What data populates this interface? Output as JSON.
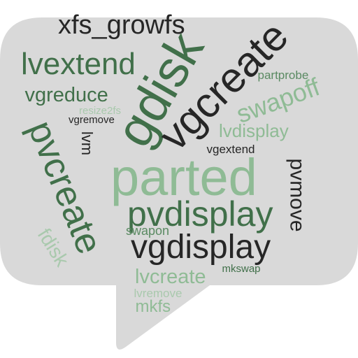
{
  "colors": {
    "bubble": "#d9d9d9",
    "dark": "#262626",
    "green_dark": "#41704a",
    "green_mid": "#5a8a62",
    "green_light": "#8fbb95",
    "green_pale": "#a9c9ad"
  },
  "words": [
    {
      "id": "xfs-growfs",
      "text": "xfs_growfs",
      "color": "#262626"
    },
    {
      "id": "gdisk",
      "text": "gdisk",
      "color": "#41704a"
    },
    {
      "id": "lvextend",
      "text": "lvextend",
      "color": "#41704a"
    },
    {
      "id": "vgcreate",
      "text": "vgcreate",
      "color": "#262626"
    },
    {
      "id": "partprobe",
      "text": "partprobe",
      "color": "#5a8a62"
    },
    {
      "id": "vgreduce",
      "text": "vgreduce",
      "color": "#41704a"
    },
    {
      "id": "swapoff",
      "text": "swapoff",
      "color": "#8fbb95"
    },
    {
      "id": "resize2fs",
      "text": "resize2fs",
      "color": "#a9c9ad"
    },
    {
      "id": "pvcreate",
      "text": "pvcreate",
      "color": "#41704a"
    },
    {
      "id": "vgremove",
      "text": "vgremove",
      "color": "#262626"
    },
    {
      "id": "lvdisplay",
      "text": "lvdisplay",
      "color": "#8fbb95"
    },
    {
      "id": "lvm",
      "text": "lvm",
      "color": "#262626"
    },
    {
      "id": "vgextend",
      "text": "vgextend",
      "color": "#262626"
    },
    {
      "id": "parted",
      "text": "parted",
      "color": "#8fbb95"
    },
    {
      "id": "pvmove",
      "text": "pvmove",
      "color": "#262626"
    },
    {
      "id": "pvdisplay",
      "text": "pvdisplay",
      "color": "#41704a"
    },
    {
      "id": "swapon",
      "text": "swapon",
      "color": "#5a8a62"
    },
    {
      "id": "fdisk",
      "text": "fdisk",
      "color": "#a9c9ad"
    },
    {
      "id": "vgdisplay",
      "text": "vgdisplay",
      "color": "#262626"
    },
    {
      "id": "lvcreate",
      "text": "lvcreate",
      "color": "#8fbb95"
    },
    {
      "id": "mkswap",
      "text": "mkswap",
      "color": "#41704a"
    },
    {
      "id": "lvremove",
      "text": "lvremove",
      "color": "#a9c9ad"
    },
    {
      "id": "mkfs",
      "text": "mkfs",
      "color": "#8fbb95"
    }
  ]
}
